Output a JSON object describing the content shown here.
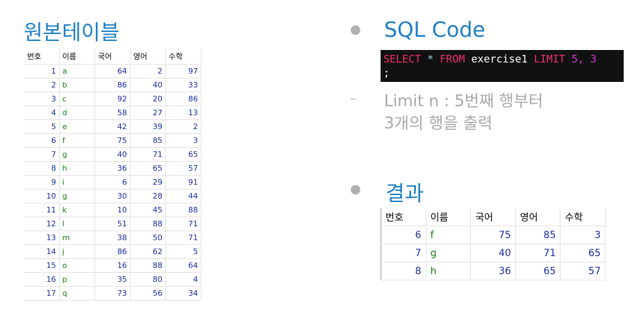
{
  "left": {
    "title": "원본테이블",
    "table": {
      "headers": [
        "번호",
        "이름",
        "국어",
        "영어",
        "수학"
      ],
      "rows": [
        [
          1,
          "a",
          64,
          2,
          97
        ],
        [
          2,
          "b",
          86,
          40,
          33
        ],
        [
          3,
          "c",
          92,
          20,
          86
        ],
        [
          4,
          "d",
          58,
          27,
          13
        ],
        [
          5,
          "e",
          42,
          39,
          2
        ],
        [
          6,
          "f",
          75,
          85,
          3
        ],
        [
          7,
          "g",
          40,
          71,
          65
        ],
        [
          8,
          "h",
          36,
          65,
          57
        ],
        [
          9,
          "i",
          6,
          29,
          91
        ],
        [
          10,
          "g",
          30,
          28,
          44
        ],
        [
          11,
          "k",
          10,
          45,
          88
        ],
        [
          12,
          "l",
          51,
          88,
          71
        ],
        [
          13,
          "m",
          38,
          50,
          71
        ],
        [
          14,
          "j",
          86,
          62,
          5
        ],
        [
          15,
          "o",
          16,
          88,
          64
        ],
        [
          16,
          "p",
          35,
          80,
          4
        ],
        [
          17,
          "q",
          73,
          56,
          34
        ]
      ]
    }
  },
  "right": {
    "sql_heading": "SQL Code",
    "code": {
      "lines": [
        [
          {
            "text": "SELECT",
            "color": "#f0306a"
          },
          {
            "text": "*",
            "color": "#9fd0e0"
          },
          {
            "text": "FROM",
            "color": "#f0306a"
          },
          {
            "text": "exercise1",
            "color": "#ffffff"
          },
          {
            "text": "LIMIT",
            "color": "#f0306a"
          },
          {
            "text": "5,",
            "color": "#d040d0"
          },
          {
            "text": "3",
            "color": "#d040d0"
          }
        ],
        [
          {
            "text": ";",
            "color": "#ffffff"
          }
        ]
      ]
    },
    "note_lines": [
      "Limit n : 5번째 행부터",
      "3개의 행을 출력"
    ],
    "result_heading": "결과",
    "result_table": {
      "headers": [
        "번호",
        "이름",
        "국어",
        "영어",
        "수학"
      ],
      "rows": [
        [
          6,
          "f",
          75,
          85,
          3
        ],
        [
          7,
          "g",
          40,
          71,
          65
        ],
        [
          8,
          "h",
          36,
          65,
          57
        ]
      ]
    }
  }
}
